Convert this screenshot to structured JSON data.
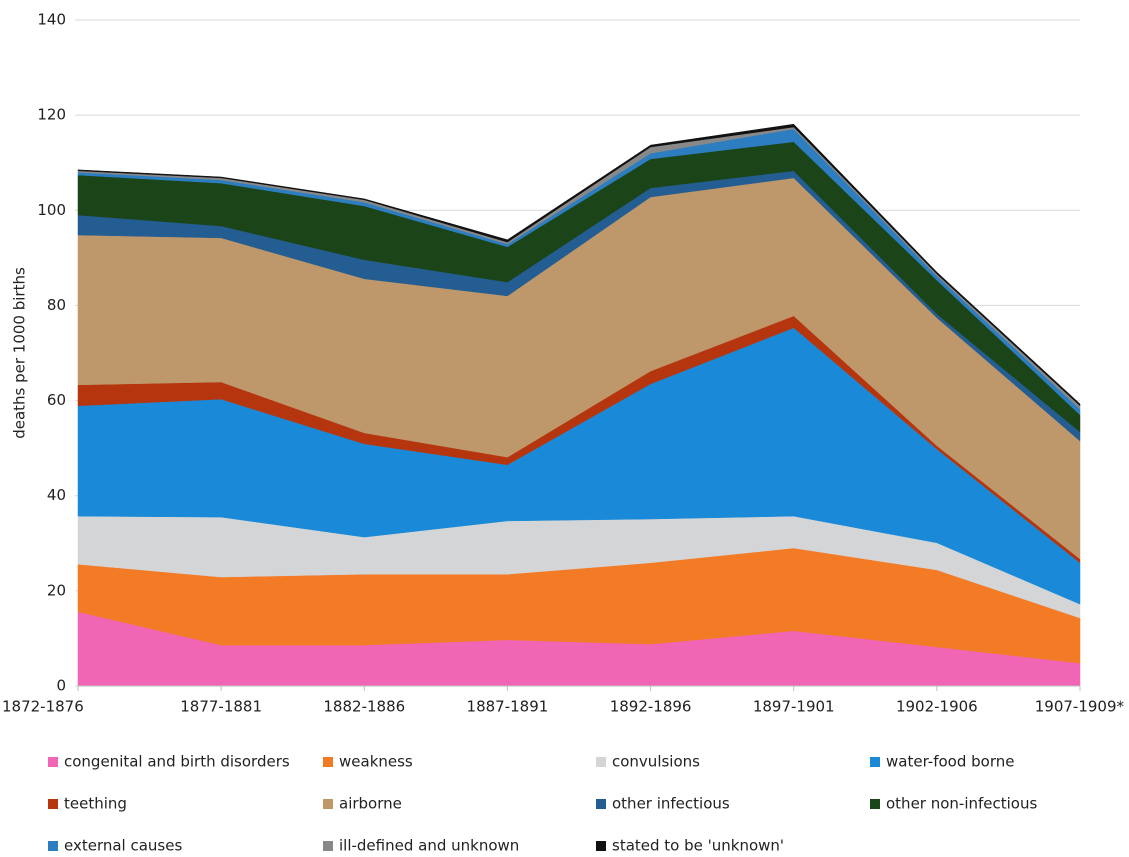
{
  "chart_data": {
    "type": "stacked_area",
    "y_label": "deaths per 1000 births",
    "categories": [
      "1872-1876",
      "1877-1881",
      "1882-1886",
      "1887-1891",
      "1892-1896",
      "1897-1901",
      "1902-1906",
      "1907-1909*"
    ],
    "ylim": [
      0,
      140
    ],
    "yticks": [
      0,
      20,
      40,
      60,
      80,
      100,
      120,
      140
    ],
    "grid": true,
    "series": [
      {
        "name": "congenital and birth disorders",
        "color": "#f066b4",
        "values": [
          15.6,
          8.6,
          8.6,
          9.7,
          8.8,
          11.6,
          8.2,
          4.8
        ]
      },
      {
        "name": "weakness",
        "color": "#f37b26",
        "values": [
          10.0,
          14.3,
          14.9,
          13.8,
          17.1,
          17.4,
          16.2,
          9.5
        ]
      },
      {
        "name": "convulsions",
        "color": "#d4d5d7",
        "values": [
          10.1,
          12.6,
          7.8,
          11.2,
          9.2,
          6.7,
          5.7,
          2.9
        ]
      },
      {
        "name": "water-food borne",
        "color": "#1a8ad8",
        "values": [
          23.2,
          24.8,
          19.6,
          11.8,
          28.4,
          39.6,
          19.7,
          8.7
        ]
      },
      {
        "name": "teething",
        "color": "#b5360e",
        "values": [
          4.4,
          3.6,
          2.3,
          1.6,
          2.7,
          2.5,
          0.7,
          0.8
        ]
      },
      {
        "name": "airborne",
        "color": "#be976a",
        "values": [
          31.5,
          30.3,
          32.4,
          33.9,
          36.6,
          29.0,
          26.9,
          24.8
        ]
      },
      {
        "name": "other infectious",
        "color": "#235d91",
        "values": [
          4.2,
          2.5,
          4.0,
          2.9,
          1.9,
          1.5,
          0.8,
          1.9
        ]
      },
      {
        "name": "other non-infectious",
        "color": "#1b4418",
        "values": [
          8.4,
          9.0,
          11.3,
          7.4,
          6.1,
          6.1,
          7.1,
          3.6
        ]
      },
      {
        "name": "external causes",
        "color": "#2c7ec0",
        "values": [
          0.6,
          0.7,
          0.8,
          0.6,
          1.2,
          2.7,
          0.9,
          1.2
        ]
      },
      {
        "name": "ill-defined and unknown",
        "color": "#888888",
        "values": [
          0.3,
          0.4,
          0.5,
          0.4,
          1.3,
          0.4,
          0.4,
          0.7
        ]
      },
      {
        "name": "stated to be 'unknown'",
        "color": "#111111",
        "values": [
          0.2,
          0.2,
          0.2,
          0.5,
          0.4,
          0.6,
          0.4,
          0.4
        ]
      }
    ]
  }
}
